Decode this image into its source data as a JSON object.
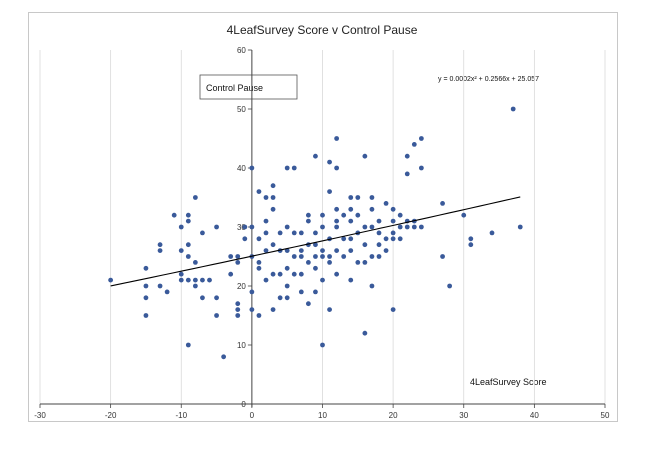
{
  "chart_data": {
    "type": "scatter",
    "title": "4LeafSurvey Score v Control Pause",
    "xlabel": "4LeafSurvey Score",
    "ylabel": "",
    "legend_label": "Control Pause",
    "legend_placement": "top-left",
    "equation": "y = 0.0002x² + 0.2566x + 25.057",
    "xlim": [
      -30,
      50
    ],
    "ylim": [
      0,
      60
    ],
    "xticks": [
      -30,
      -20,
      -10,
      0,
      10,
      20,
      30,
      40,
      50
    ],
    "yticks": [
      0,
      10,
      20,
      30,
      40,
      50,
      60
    ],
    "grid": "vertical",
    "point_color": "#3a5a9a",
    "trend": {
      "a": 0.0002,
      "b": 0.2566,
      "c": 25.057,
      "x_range": [
        -20,
        38
      ]
    },
    "points": [
      [
        -20,
        21
      ],
      [
        -15,
        23
      ],
      [
        -15,
        20
      ],
      [
        -15,
        18
      ],
      [
        -15,
        15
      ],
      [
        -13,
        27
      ],
      [
        -13,
        26
      ],
      [
        -13,
        20
      ],
      [
        -12,
        19
      ],
      [
        -11,
        32
      ],
      [
        -10,
        30
      ],
      [
        -10,
        26
      ],
      [
        -10,
        22
      ],
      [
        -10,
        21
      ],
      [
        -9,
        32
      ],
      [
        -9,
        31
      ],
      [
        -9,
        27
      ],
      [
        -9,
        25
      ],
      [
        -9,
        21
      ],
      [
        -9,
        10
      ],
      [
        -8,
        35
      ],
      [
        -8,
        24
      ],
      [
        -8,
        21
      ],
      [
        -8,
        20
      ],
      [
        -7,
        29
      ],
      [
        -7,
        21
      ],
      [
        -7,
        18
      ],
      [
        -6,
        21
      ],
      [
        -5,
        30
      ],
      [
        -5,
        18
      ],
      [
        -5,
        15
      ],
      [
        -4,
        8
      ],
      [
        -3,
        25
      ],
      [
        -3,
        22
      ],
      [
        -2,
        25
      ],
      [
        -2,
        24
      ],
      [
        -2,
        17
      ],
      [
        -2,
        16
      ],
      [
        -2,
        15
      ],
      [
        -1,
        30
      ],
      [
        -1,
        28
      ],
      [
        0,
        40
      ],
      [
        0,
        30
      ],
      [
        0,
        25
      ],
      [
        0,
        19
      ],
      [
        0,
        16
      ],
      [
        1,
        36
      ],
      [
        1,
        28
      ],
      [
        1,
        24
      ],
      [
        1,
        23
      ],
      [
        1,
        15
      ],
      [
        2,
        35
      ],
      [
        2,
        31
      ],
      [
        2,
        29
      ],
      [
        2,
        26
      ],
      [
        2,
        21
      ],
      [
        3,
        37
      ],
      [
        3,
        35
      ],
      [
        3,
        33
      ],
      [
        3,
        27
      ],
      [
        3,
        22
      ],
      [
        3,
        16
      ],
      [
        4,
        29
      ],
      [
        4,
        26
      ],
      [
        4,
        22
      ],
      [
        4,
        18
      ],
      [
        5,
        40
      ],
      [
        5,
        30
      ],
      [
        5,
        26
      ],
      [
        5,
        23
      ],
      [
        5,
        20
      ],
      [
        5,
        18
      ],
      [
        6,
        40
      ],
      [
        6,
        29
      ],
      [
        6,
        25
      ],
      [
        6,
        22
      ],
      [
        7,
        29
      ],
      [
        7,
        26
      ],
      [
        7,
        25
      ],
      [
        7,
        22
      ],
      [
        7,
        19
      ],
      [
        8,
        32
      ],
      [
        8,
        31
      ],
      [
        8,
        27
      ],
      [
        8,
        24
      ],
      [
        8,
        17
      ],
      [
        9,
        42
      ],
      [
        9,
        29
      ],
      [
        9,
        27
      ],
      [
        9,
        25
      ],
      [
        9,
        23
      ],
      [
        9,
        19
      ],
      [
        10,
        32
      ],
      [
        10,
        30
      ],
      [
        10,
        26
      ],
      [
        10,
        25
      ],
      [
        10,
        21
      ],
      [
        10,
        10
      ],
      [
        11,
        41
      ],
      [
        11,
        36
      ],
      [
        11,
        28
      ],
      [
        11,
        25
      ],
      [
        11,
        24
      ],
      [
        11,
        16
      ],
      [
        12,
        45
      ],
      [
        12,
        40
      ],
      [
        12,
        33
      ],
      [
        12,
        31
      ],
      [
        12,
        30
      ],
      [
        12,
        26
      ],
      [
        12,
        22
      ],
      [
        13,
        32
      ],
      [
        13,
        28
      ],
      [
        13,
        25
      ],
      [
        14,
        35
      ],
      [
        14,
        33
      ],
      [
        14,
        31
      ],
      [
        14,
        28
      ],
      [
        14,
        26
      ],
      [
        14,
        21
      ],
      [
        15,
        35
      ],
      [
        15,
        32
      ],
      [
        15,
        29
      ],
      [
        15,
        24
      ],
      [
        16,
        42
      ],
      [
        16,
        30
      ],
      [
        16,
        27
      ],
      [
        16,
        24
      ],
      [
        16,
        12
      ],
      [
        17,
        35
      ],
      [
        17,
        33
      ],
      [
        17,
        30
      ],
      [
        17,
        25
      ],
      [
        17,
        20
      ],
      [
        18,
        31
      ],
      [
        18,
        29
      ],
      [
        18,
        27
      ],
      [
        18,
        25
      ],
      [
        19,
        34
      ],
      [
        19,
        28
      ],
      [
        19,
        26
      ],
      [
        20,
        33
      ],
      [
        20,
        31
      ],
      [
        20,
        29
      ],
      [
        20,
        28
      ],
      [
        20,
        16
      ],
      [
        21,
        32
      ],
      [
        21,
        30
      ],
      [
        21,
        28
      ],
      [
        22,
        42
      ],
      [
        22,
        39
      ],
      [
        22,
        31
      ],
      [
        22,
        30
      ],
      [
        23,
        44
      ],
      [
        23,
        31
      ],
      [
        23,
        30
      ],
      [
        24,
        45
      ],
      [
        24,
        40
      ],
      [
        24,
        30
      ],
      [
        27,
        34
      ],
      [
        27,
        25
      ],
      [
        28,
        20
      ],
      [
        30,
        32
      ],
      [
        31,
        28
      ],
      [
        31,
        27
      ],
      [
        34,
        29
      ],
      [
        37,
        50
      ],
      [
        38,
        30
      ]
    ]
  }
}
